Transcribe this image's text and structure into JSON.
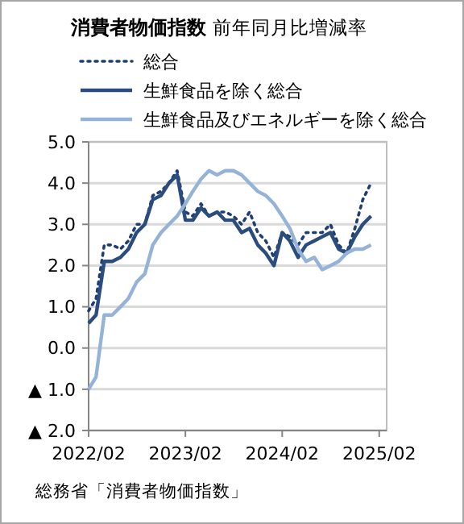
{
  "chart_data": {
    "type": "line",
    "title": "消費者物価指数",
    "subtitle": "前年同月比増減率",
    "x": [
      "2022-02",
      "2022-03",
      "2022-04",
      "2022-05",
      "2022-06",
      "2022-07",
      "2022-08",
      "2022-09",
      "2022-10",
      "2022-11",
      "2022-12",
      "2023-01",
      "2023-02",
      "2023-03",
      "2023-04",
      "2023-05",
      "2023-06",
      "2023-07",
      "2023-08",
      "2023-09",
      "2023-10",
      "2023-11",
      "2023-12",
      "2024-01",
      "2024-02",
      "2024-03",
      "2024-04",
      "2024-05",
      "2024-06",
      "2024-07",
      "2024-08",
      "2024-09",
      "2024-10",
      "2024-11",
      "2024-12",
      "2025-01"
    ],
    "series": [
      {
        "name": "総合",
        "color": "#1f3f73",
        "line_style": "dotted",
        "values": [
          0.9,
          1.2,
          2.5,
          2.5,
          2.4,
          2.6,
          3.0,
          3.0,
          3.7,
          3.8,
          4.0,
          4.3,
          3.3,
          3.2,
          3.5,
          3.2,
          3.3,
          3.3,
          3.2,
          3.0,
          3.3,
          2.8,
          2.6,
          2.2,
          2.8,
          2.7,
          2.5,
          2.8,
          2.8,
          2.8,
          3.0,
          2.5,
          2.3,
          2.9,
          3.6,
          4.0
        ]
      },
      {
        "name": "生鮮食品を除く総合",
        "color": "#2b4c7e",
        "line_style": "solid",
        "values": [
          0.6,
          0.8,
          2.1,
          2.1,
          2.2,
          2.4,
          2.8,
          3.0,
          3.6,
          3.7,
          4.0,
          4.2,
          3.1,
          3.1,
          3.4,
          3.2,
          3.3,
          3.1,
          3.1,
          2.8,
          2.9,
          2.5,
          2.3,
          2.0,
          2.8,
          2.6,
          2.2,
          2.5,
          2.6,
          2.7,
          2.8,
          2.4,
          2.3,
          2.7,
          3.0,
          3.2
        ]
      },
      {
        "name": "生鮮食品及びエネルギーを除く総合",
        "color": "#95b3d7",
        "line_style": "solid",
        "values": [
          -1.0,
          -0.7,
          0.8,
          0.8,
          1.0,
          1.2,
          1.6,
          1.8,
          2.5,
          2.8,
          3.0,
          3.2,
          3.5,
          3.8,
          4.1,
          4.3,
          4.2,
          4.3,
          4.3,
          4.2,
          4.0,
          3.8,
          3.7,
          3.5,
          3.2,
          2.9,
          2.4,
          2.1,
          2.2,
          1.9,
          2.0,
          2.1,
          2.3,
          2.4,
          2.4,
          2.5
        ]
      }
    ],
    "xlim": [
      "2022-02",
      "2025-03"
    ],
    "xticks": [
      {
        "value": "2022-02",
        "label": "2022/02"
      },
      {
        "value": "2023-02",
        "label": "2023/02"
      },
      {
        "value": "2024-02",
        "label": "2024/02"
      },
      {
        "value": "2025-02",
        "label": "2025/02"
      }
    ],
    "ylim": [
      -2,
      5
    ],
    "yticks": [
      {
        "value": -2,
        "label": "▲ 2.0"
      },
      {
        "value": -1,
        "label": "▲ 1.0"
      },
      {
        "value": 0,
        "label": "0.0"
      },
      {
        "value": 1,
        "label": "1.0"
      },
      {
        "value": 2,
        "label": "2.0"
      },
      {
        "value": 3,
        "label": "3.0"
      },
      {
        "value": 4,
        "label": "4.0"
      },
      {
        "value": 5,
        "label": "5.0"
      }
    ],
    "grid": "y",
    "legend": "top",
    "marker": "none",
    "annotations": [
      "総務省「消費者物価指数」"
    ]
  }
}
